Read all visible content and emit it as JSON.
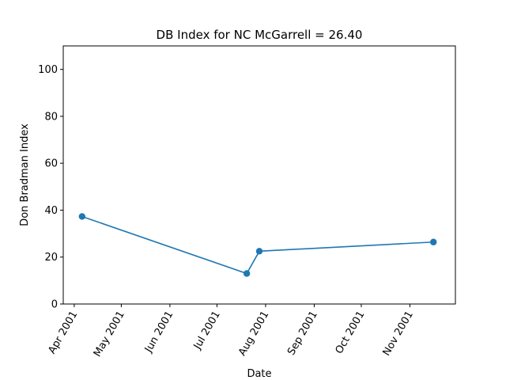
{
  "chart_data": {
    "type": "line",
    "title": "DB Index for NC McGarrell = 26.40",
    "xlabel": "Date",
    "ylabel": "Don Bradman Index",
    "ylim": [
      0,
      110
    ],
    "xlim": [
      "2001-03-25",
      "2001-11-30"
    ],
    "yticks": [
      0,
      20,
      40,
      60,
      80,
      100
    ],
    "xticks": [
      {
        "date": "2001-04-01",
        "label": "Apr 2001"
      },
      {
        "date": "2001-05-01",
        "label": "May 2001"
      },
      {
        "date": "2001-06-01",
        "label": "Jun 2001"
      },
      {
        "date": "2001-07-01",
        "label": "Jul 2001"
      },
      {
        "date": "2001-08-01",
        "label": "Aug 2001"
      },
      {
        "date": "2001-09-01",
        "label": "Sep 2001"
      },
      {
        "date": "2001-10-01",
        "label": "Oct 2001"
      },
      {
        "date": "2001-11-01",
        "label": "Nov 2001"
      }
    ],
    "series": [
      {
        "color": "#1f77b4",
        "points": [
          {
            "x": "2001-04-06",
            "y": 37.3
          },
          {
            "x": "2001-07-20",
            "y": 13.0
          },
          {
            "x": "2001-07-28",
            "y": 22.5
          },
          {
            "x": "2001-11-16",
            "y": 26.4
          }
        ]
      }
    ],
    "grid": false
  }
}
